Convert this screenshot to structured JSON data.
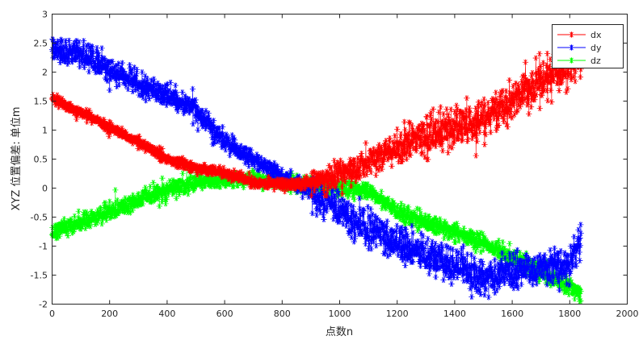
{
  "chart_data": {
    "type": "scatter",
    "title": "",
    "xlabel": "点数n",
    "ylabel": "XYZ 位置偏差: 单位m",
    "xlim": [
      0,
      2000
    ],
    "ylim": [
      -2,
      3
    ],
    "xticks": [
      "0",
      "200",
      "400",
      "600",
      "800",
      "1000",
      "1200",
      "1400",
      "1600",
      "1800",
      "2000"
    ],
    "yticks": [
      "-2",
      "-1.5",
      "-1",
      "-0.5",
      "0",
      "0.5",
      "1",
      "1.5",
      "2",
      "2.5",
      "3"
    ],
    "grid": false,
    "legend_position": "top-right",
    "marker": "*",
    "connected_lines": true,
    "point_count": 1840,
    "series": [
      {
        "name": "dx",
        "color": "#FF0000",
        "x": [
          0,
          100,
          200,
          300,
          400,
          500,
          600,
          700,
          800,
          900,
          1000,
          1100,
          1200,
          1300,
          1400,
          1500,
          1600,
          1700,
          1800,
          1840
        ],
        "y": [
          1.55,
          1.3,
          1.05,
          0.8,
          0.5,
          0.35,
          0.25,
          0.1,
          0.05,
          0.1,
          0.25,
          0.45,
          0.7,
          0.85,
          1.05,
          1.2,
          1.5,
          1.85,
          2.15,
          2.3
        ]
      },
      {
        "name": "dy",
        "color": "#0000FF",
        "x": [
          0,
          100,
          200,
          300,
          400,
          500,
          600,
          700,
          800,
          900,
          1000,
          1100,
          1200,
          1300,
          1400,
          1500,
          1600,
          1700,
          1800,
          1840
        ],
        "y": [
          2.4,
          2.3,
          2.05,
          1.8,
          1.6,
          1.35,
          0.8,
          0.5,
          0.2,
          -0.05,
          -0.4,
          -0.7,
          -0.95,
          -1.15,
          -1.35,
          -1.55,
          -1.45,
          -1.35,
          -1.35,
          -0.85
        ]
      },
      {
        "name": "dz",
        "color": "#00FF00",
        "x": [
          0,
          100,
          200,
          300,
          400,
          500,
          600,
          700,
          800,
          900,
          1000,
          1100,
          1200,
          1300,
          1400,
          1500,
          1600,
          1700,
          1800,
          1840
        ],
        "y": [
          -0.75,
          -0.6,
          -0.4,
          -0.2,
          -0.05,
          0.1,
          0.15,
          0.15,
          0.1,
          0.05,
          0.0,
          -0.05,
          -0.4,
          -0.6,
          -0.75,
          -0.95,
          -1.2,
          -1.45,
          -1.7,
          -1.8
        ]
      }
    ]
  }
}
